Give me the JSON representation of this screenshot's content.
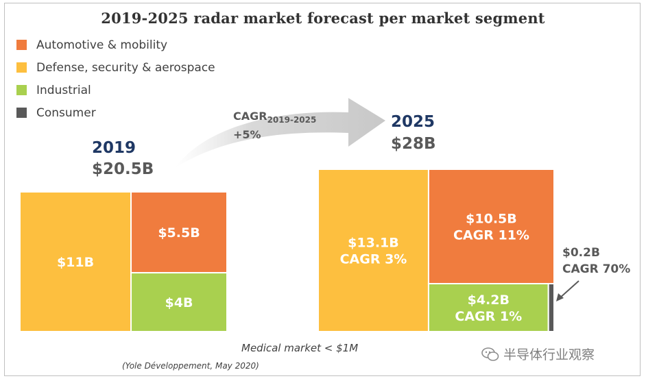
{
  "colors": {
    "automotive": "#f07c3e",
    "defense": "#fdbf3f",
    "industrial": "#a9d04f",
    "consumer": "#595959",
    "year": "#1f3864",
    "total": "#595959",
    "arrow": "#d9d9d9"
  },
  "legend_icon_names": [
    "orange-square",
    "yellow-square",
    "green-square",
    "gray-square"
  ],
  "chart_data": {
    "type": "treemap",
    "title": "2019-2025 radar market forecast per market segment",
    "legend": [
      {
        "name": "Automotive & mobility",
        "color": "#f07c3e"
      },
      {
        "name": "Defense, security & aerospace",
        "color": "#fdbf3f"
      },
      {
        "name": "Industrial",
        "color": "#a9d04f"
      },
      {
        "name": "Consumer",
        "color": "#595959"
      }
    ],
    "cagr_label": "CAGR",
    "cagr_period": "2019-2025",
    "cagr_value": "+5%",
    "years": [
      {
        "year": "2019",
        "total_label": "$20.5B",
        "total_value": 20.5,
        "segments": [
          {
            "segment": "Defense, security & aerospace",
            "value": 11,
            "label": "$11B",
            "cagr_label": ""
          },
          {
            "segment": "Automotive & mobility",
            "value": 5.5,
            "label": "$5.5B",
            "cagr_label": ""
          },
          {
            "segment": "Industrial",
            "value": 4,
            "label": "$4B",
            "cagr_label": ""
          }
        ]
      },
      {
        "year": "2025",
        "total_label": "$28B",
        "total_value": 28,
        "segments": [
          {
            "segment": "Defense, security & aerospace",
            "value": 13.1,
            "label": "$13.1B",
            "cagr_label": "CAGR 3%"
          },
          {
            "segment": "Automotive & mobility",
            "value": 10.5,
            "label": "$10.5B",
            "cagr_label": "CAGR 11%"
          },
          {
            "segment": "Industrial",
            "value": 4.2,
            "label": "$4.2B",
            "cagr_label": "CAGR 1%"
          },
          {
            "segment": "Consumer",
            "value": 0.2,
            "label": "$0.2B",
            "cagr_label": "CAGR 70%"
          }
        ]
      }
    ],
    "note": "Medical market < $1M",
    "source": "(Yole Développement, May 2020)"
  },
  "watermark": "半导体行业观察"
}
